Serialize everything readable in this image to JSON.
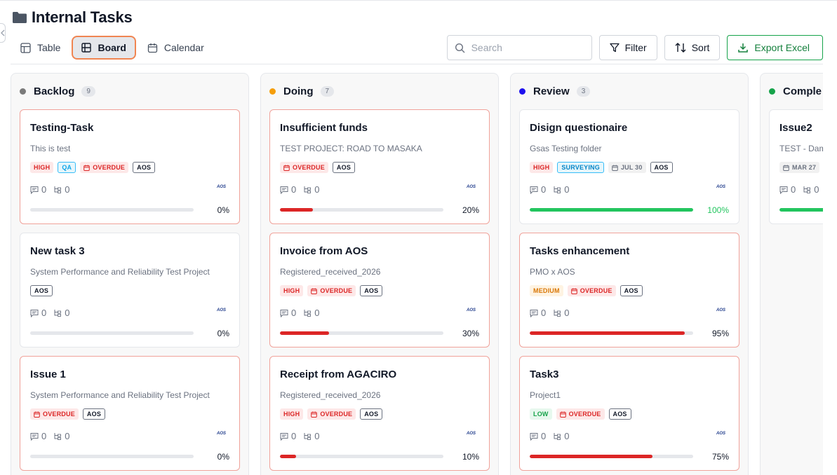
{
  "page": {
    "title": "Internal Tasks"
  },
  "views": [
    {
      "label": "Table",
      "icon": "table-icon",
      "active": false
    },
    {
      "label": "Board",
      "icon": "board-icon",
      "active": true
    },
    {
      "label": "Calendar",
      "icon": "calendar-icon",
      "active": false
    }
  ],
  "toolbar": {
    "search_placeholder": "Search",
    "filter_label": "Filter",
    "sort_label": "Sort",
    "export_label": "Export Excel"
  },
  "colors": {
    "backlog": "#6b7280",
    "doing": "#f59e0b",
    "review": "#1d10ee",
    "complete": "#16a34a",
    "progress_red": "#dc2626",
    "progress_green": "#22c55e",
    "accent_orange": "#f08552"
  },
  "columns": [
    {
      "title": "Backlog",
      "count": "9",
      "dot": "#7a7a7a",
      "cards": [
        {
          "title": "Testing-Task",
          "project": "This is test",
          "tags": [
            {
              "t": "HIGH",
              "k": "high"
            },
            {
              "t": "QA",
              "k": "qa"
            },
            {
              "t": "OVERDUE",
              "k": "overdue"
            },
            {
              "t": "AOS",
              "k": "org"
            }
          ],
          "comments": "0",
          "subtasks": "0",
          "progress": 0,
          "pct": "0%",
          "overdue": true
        },
        {
          "title": "New task 3",
          "project": "System Performance and Reliability Test Project",
          "tags": [
            {
              "t": "AOS",
              "k": "org"
            }
          ],
          "comments": "0",
          "subtasks": "0",
          "progress": 0,
          "pct": "0%",
          "overdue": false
        },
        {
          "title": "Issue 1",
          "project": "System Performance and Reliability Test Project",
          "tags": [
            {
              "t": "OVERDUE",
              "k": "overdue"
            },
            {
              "t": "AOS",
              "k": "org"
            }
          ],
          "comments": "0",
          "subtasks": "0",
          "progress": 0,
          "pct": "0%",
          "overdue": true
        }
      ]
    },
    {
      "title": "Doing",
      "count": "7",
      "dot": "#f59e0b",
      "cards": [
        {
          "title": "Insufficient funds",
          "project": "TEST PROJECT: ROAD TO MASAKA",
          "tags": [
            {
              "t": "OVERDUE",
              "k": "overdue"
            },
            {
              "t": "AOS",
              "k": "org"
            }
          ],
          "comments": "0",
          "subtasks": "0",
          "progress": 20,
          "pct": "20%",
          "overdue": true
        },
        {
          "title": "Invoice from AOS",
          "project": "Registered_received_2026",
          "tags": [
            {
              "t": "HIGH",
              "k": "high"
            },
            {
              "t": "OVERDUE",
              "k": "overdue"
            },
            {
              "t": "AOS",
              "k": "org"
            }
          ],
          "comments": "0",
          "subtasks": "0",
          "progress": 30,
          "pct": "30%",
          "overdue": true
        },
        {
          "title": "Receipt from AGACIRO",
          "project": "Registered_received_2026",
          "tags": [
            {
              "t": "HIGH",
              "k": "high"
            },
            {
              "t": "OVERDUE",
              "k": "overdue"
            },
            {
              "t": "AOS",
              "k": "org"
            }
          ],
          "comments": "0",
          "subtasks": "0",
          "progress": 10,
          "pct": "10%",
          "overdue": true
        }
      ]
    },
    {
      "title": "Review",
      "count": "3",
      "dot": "#1d10ee",
      "cards": [
        {
          "title": "Disign questionaire",
          "project": "Gsas Testing folder",
          "tags": [
            {
              "t": "HIGH",
              "k": "high"
            },
            {
              "t": "SURVEYING",
              "k": "surveying"
            },
            {
              "t": "JUL 30",
              "k": "date"
            },
            {
              "t": "AOS",
              "k": "org"
            }
          ],
          "comments": "0",
          "subtasks": "0",
          "progress": 100,
          "pct": "100%",
          "overdue": false
        },
        {
          "title": "Tasks enhancement",
          "project": "PMO x AOS",
          "tags": [
            {
              "t": "MEDIUM",
              "k": "medium"
            },
            {
              "t": "OVERDUE",
              "k": "overdue"
            },
            {
              "t": "AOS",
              "k": "org"
            }
          ],
          "comments": "0",
          "subtasks": "0",
          "progress": 95,
          "pct": "95%",
          "overdue": true
        },
        {
          "title": "Task3",
          "project": "Project1",
          "tags": [
            {
              "t": "LOW",
              "k": "low"
            },
            {
              "t": "OVERDUE",
              "k": "overdue"
            },
            {
              "t": "AOS",
              "k": "org"
            }
          ],
          "comments": "0",
          "subtasks": "0",
          "progress": 75,
          "pct": "75%",
          "overdue": true
        }
      ]
    },
    {
      "title": "Comple",
      "count": "",
      "dot": "#16a34a",
      "cards": [
        {
          "title": "Issue2",
          "project": "TEST - Dam",
          "tags": [
            {
              "t": "MAR 27",
              "k": "date"
            }
          ],
          "comments": "0",
          "subtasks": "0",
          "progress": 100,
          "pct": "",
          "overdue": false
        }
      ]
    }
  ],
  "logo_text": "AOS"
}
